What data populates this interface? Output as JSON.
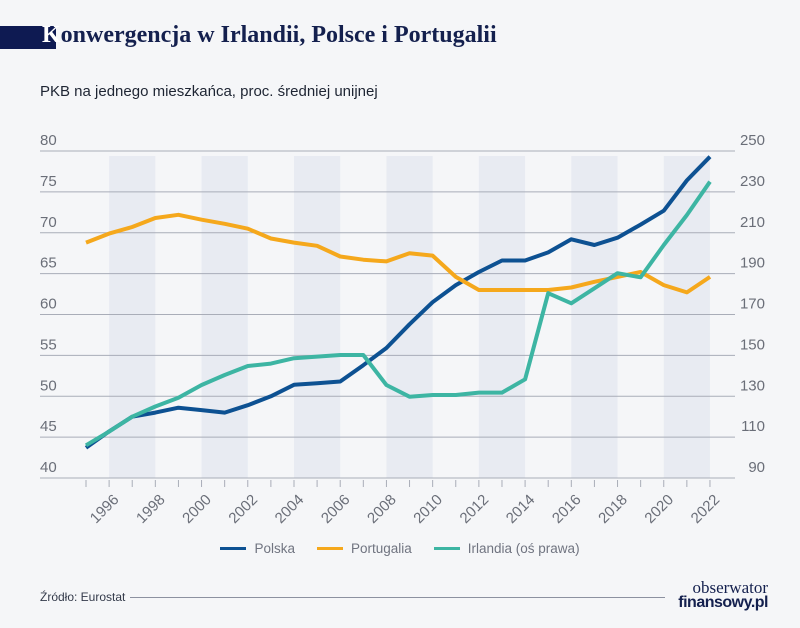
{
  "header": {
    "title_first_letter": "K",
    "title_rest": "onwergencja w Irlandii, Polsce i Portugalii",
    "subtitle": "PKB na jednego mieszkańca, proc. średniej unijnej"
  },
  "footer": {
    "source": "Źródło: Eurostat",
    "logo_line1": "obserwator",
    "logo_line2": "finansowy.pl"
  },
  "chart_data": {
    "type": "line",
    "title": "Konwergencja w Irlandii, Polsce i Portugalii",
    "subtitle": "PKB na jednego mieszkańca, proc. średniej unijnej",
    "x": [
      1995,
      1996,
      1997,
      1998,
      1999,
      2000,
      2001,
      2002,
      2003,
      2004,
      2005,
      2006,
      2007,
      2008,
      2009,
      2010,
      2011,
      2012,
      2013,
      2014,
      2015,
      2016,
      2017,
      2018,
      2019,
      2020,
      2021,
      2022
    ],
    "x_tick_labels": [
      "1996",
      "1998",
      "2000",
      "2002",
      "2004",
      "2006",
      "2008",
      "2010",
      "2012",
      "2014",
      "2016",
      "2018",
      "2020",
      "2022"
    ],
    "y_left": {
      "range": [
        40,
        80
      ],
      "ticks": [
        "40",
        "45",
        "50",
        "55",
        "60",
        "65",
        "70",
        "75",
        "80"
      ]
    },
    "y_right": {
      "range": [
        90,
        250
      ],
      "ticks": [
        "90",
        "110",
        "130",
        "150",
        "170",
        "190",
        "210",
        "230",
        "250"
      ]
    },
    "grid": "horizontal",
    "shaded_bands": [
      [
        1996,
        1998
      ],
      [
        2000,
        2002
      ],
      [
        2004,
        2006
      ],
      [
        2008,
        2010
      ],
      [
        2012,
        2014
      ],
      [
        2016,
        2018
      ],
      [
        2020,
        2022
      ]
    ],
    "legend_position": "bottom",
    "series": [
      {
        "name": "Polska",
        "axis": "left",
        "color": "#0d5192",
        "values": [
          43.7,
          45.7,
          47.5,
          48.0,
          48.6,
          48.3,
          48.0,
          48.9,
          50.0,
          51.4,
          51.6,
          51.8,
          53.8,
          55.9,
          58.8,
          61.5,
          63.6,
          65.2,
          66.6,
          66.6,
          67.6,
          69.2,
          68.5,
          69.4,
          71.0,
          72.7,
          76.4,
          79.3
        ]
      },
      {
        "name": "Portugalia",
        "axis": "left",
        "color": "#f5a81c",
        "values": [
          68.8,
          69.9,
          70.7,
          71.8,
          72.2,
          71.6,
          71.1,
          70.5,
          69.3,
          68.8,
          68.4,
          67.1,
          66.7,
          66.5,
          67.5,
          67.2,
          64.6,
          63.0,
          63.0,
          63.0,
          63.0,
          63.3,
          64.0,
          64.6,
          65.2,
          63.6,
          62.7,
          64.6
        ]
      },
      {
        "name": "Irlandia (oś prawa)",
        "axis": "right",
        "color": "#3db5a3",
        "values": [
          106,
          112.7,
          120,
          125,
          129.3,
          135.5,
          140.4,
          144.8,
          146,
          148.6,
          149.4,
          150.2,
          150.2,
          135.5,
          129.8,
          130.6,
          130.6,
          131.8,
          131.8,
          138.3,
          180.4,
          175.5,
          182.8,
          190.2,
          188.2,
          204,
          218.7,
          235
        ]
      }
    ]
  }
}
